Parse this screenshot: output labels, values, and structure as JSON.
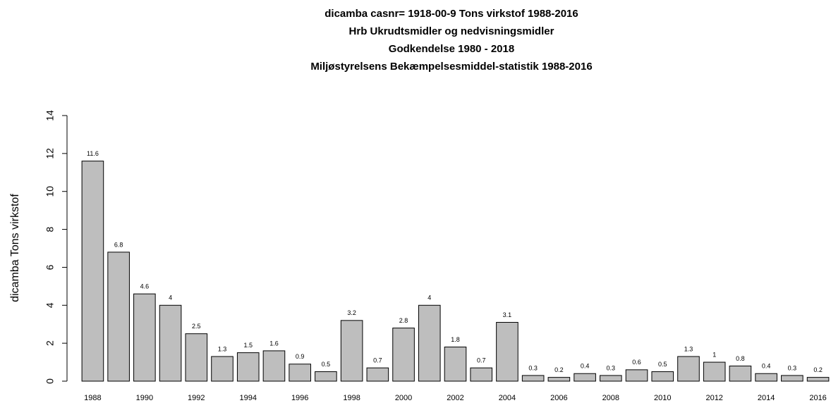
{
  "chart_data": {
    "type": "bar",
    "title": [
      "dicamba casnr= 1918-00-9 Tons virkstof 1988-2016",
      "Hrb   Ukrudtsmidler og nedvisningsmidler",
      "Godkendelse 1980 - 2018",
      "Miljøstyrelsens Bekæmpelsesmiddel-statistik 1988-2016"
    ],
    "y_label": "dicamba   Tons  virkstof",
    "categories": [
      "1988",
      null,
      "1990",
      null,
      "1992",
      null,
      "1994",
      null,
      "1996",
      null,
      "1998",
      null,
      "2000",
      null,
      "2002",
      null,
      "2004",
      null,
      "2006",
      null,
      "2008",
      null,
      "2010",
      null,
      "2012",
      null,
      "2014",
      null,
      "2016"
    ],
    "values": [
      11.6,
      6.8,
      4.6,
      4,
      2.5,
      1.3,
      1.5,
      1.6,
      0.9,
      0.5,
      3.2,
      0.7,
      2.8,
      4,
      1.8,
      0.7,
      3.1,
      0.3,
      0.2,
      0.4,
      0.3,
      0.6,
      0.5,
      1.3,
      1,
      0.8,
      0.4,
      0.3,
      0.2
    ],
    "color": "#bebebe",
    "ylim": [
      0,
      14
    ],
    "yticks": [
      0,
      2,
      4,
      6,
      8,
      10,
      12,
      14
    ]
  }
}
